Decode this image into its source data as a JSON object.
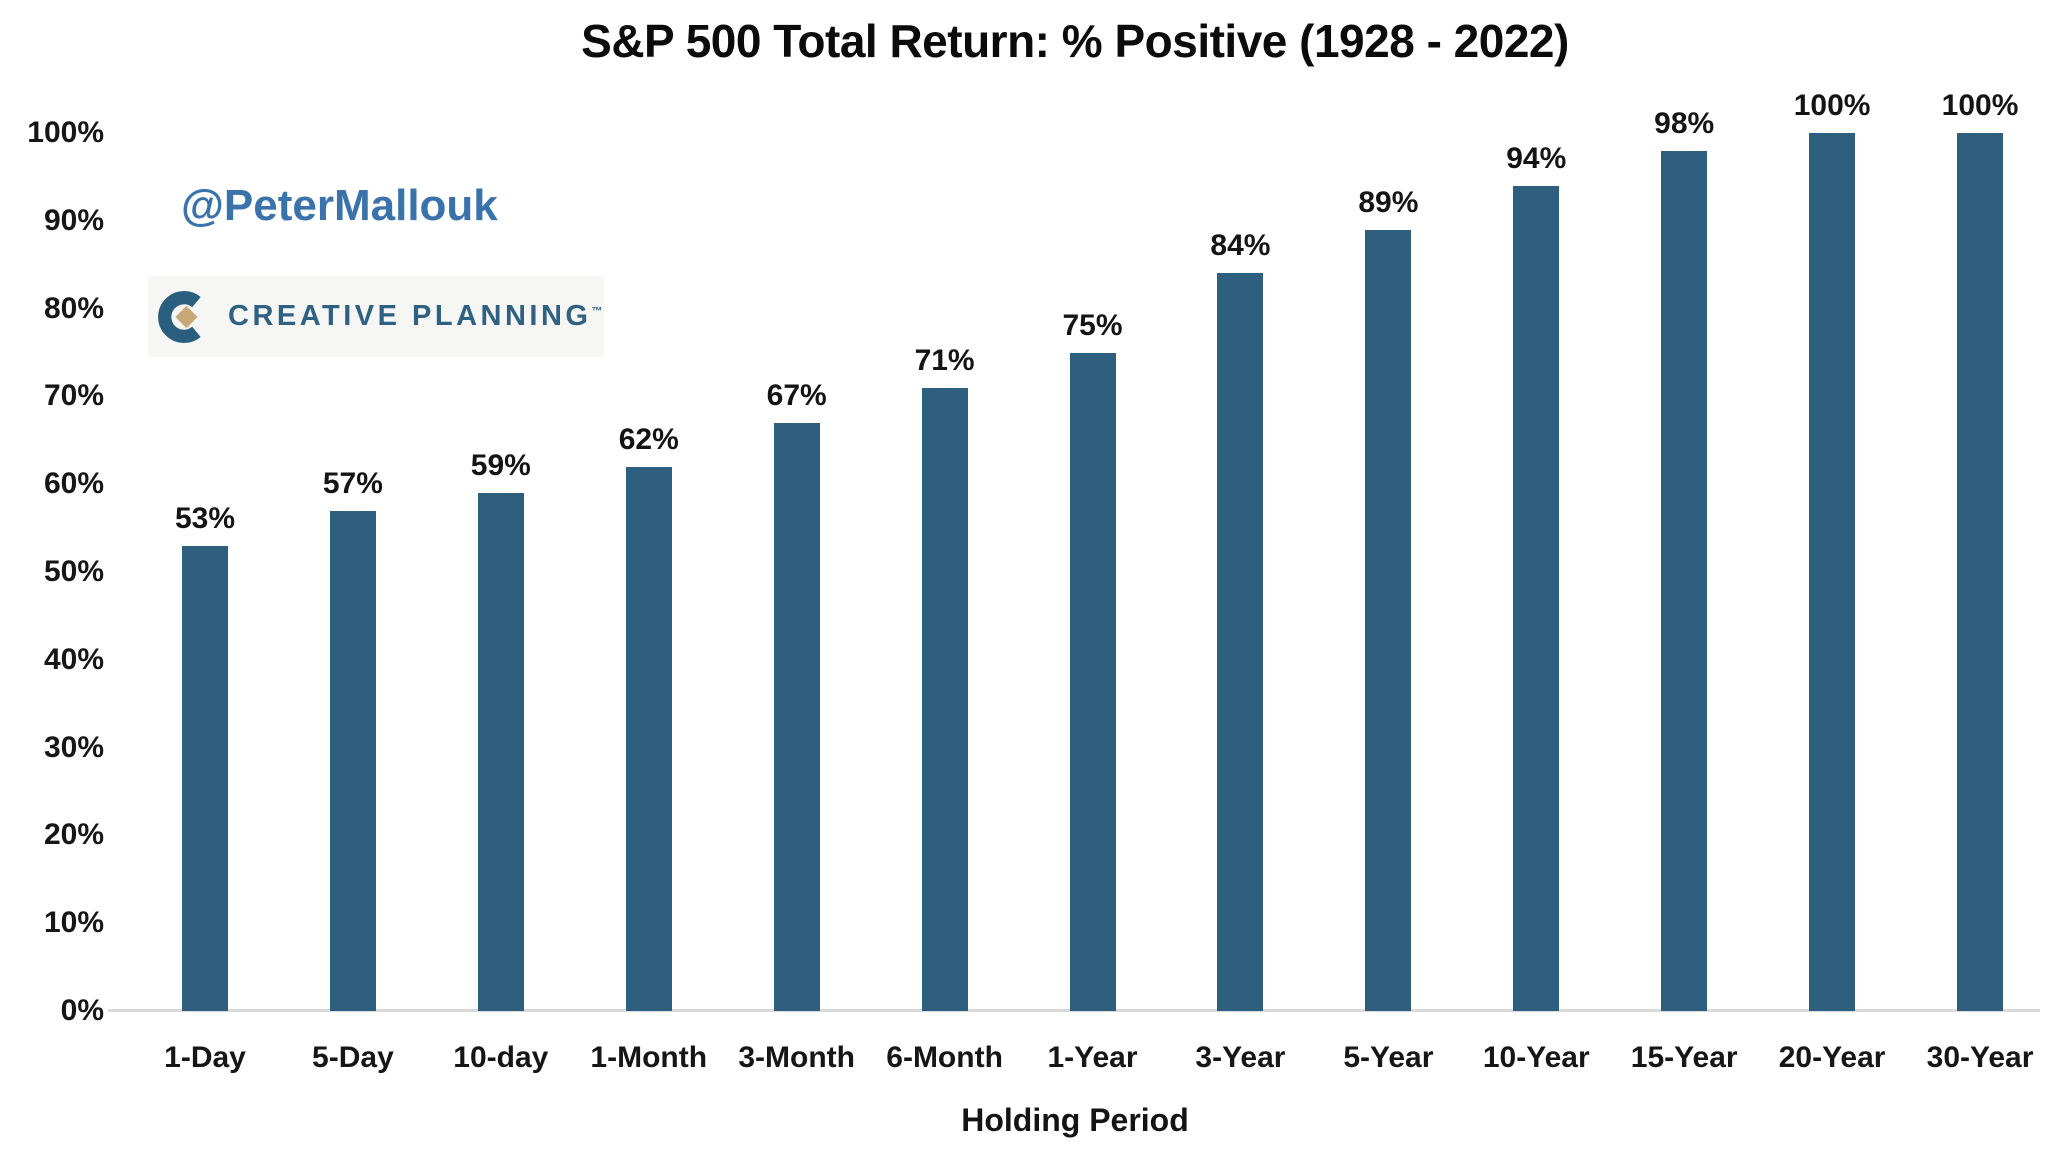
{
  "page": {
    "background_color": "#ffffff"
  },
  "watermark": {
    "handle": "@PeterMallouk",
    "color": "#3a73ac"
  },
  "logo": {
    "brand": "CREATIVE PLANNING",
    "trademark": "™",
    "c_color": "#2a5e7e",
    "diamond_color": "#c9a877",
    "text_color": "#2f6183",
    "background": "#f6f6f4"
  },
  "chart_data": {
    "type": "bar",
    "title": "S&P 500 Total Return: % Positive (1928 - 2022)",
    "xlabel": "Holding Period",
    "ylabel": "",
    "categories": [
      "1-Day",
      "5-Day",
      "10-day",
      "1-Month",
      "3-Month",
      "6-Month",
      "1-Year",
      "3-Year",
      "5-Year",
      "10-Year",
      "15-Year",
      "20-Year",
      "30-Year"
    ],
    "values": [
      53,
      57,
      59,
      62,
      67,
      71,
      75,
      84,
      89,
      94,
      98,
      100,
      100
    ],
    "value_labels": [
      "53%",
      "57%",
      "59%",
      "62%",
      "67%",
      "71%",
      "75%",
      "84%",
      "89%",
      "94%",
      "98%",
      "100%",
      "100%"
    ],
    "ylim": [
      0,
      100
    ],
    "ytick_step": 10,
    "ytick_labels": [
      "0%",
      "10%",
      "20%",
      "30%",
      "40%",
      "50%",
      "60%",
      "70%",
      "80%",
      "90%",
      "100%"
    ],
    "bar_color": "#2e5f7e",
    "axis_line_color": "#d9d9d9",
    "grid": false,
    "legend": false,
    "data_labels": true
  }
}
